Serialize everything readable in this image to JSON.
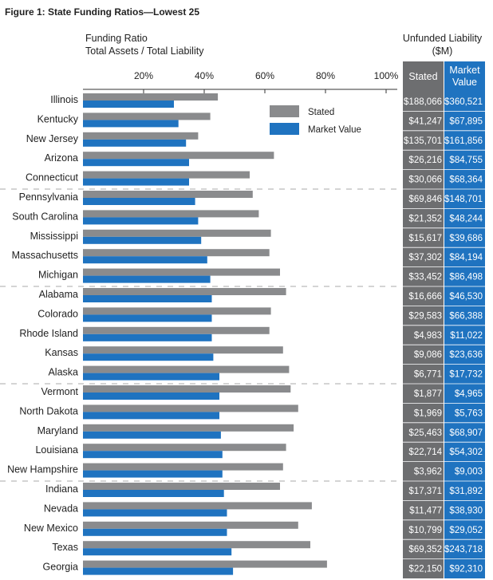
{
  "figure_title": "Figure 1: State Funding Ratios—Lowest 25",
  "axis_title_line1": "Funding Ratio",
  "axis_title_line2": "Total Assets / Total Liability",
  "unfunded_title_line1": "Unfunded Liability",
  "unfunded_title_line2": "($M)",
  "col_stated": "Stated",
  "col_market_line1": "Market",
  "col_market_line2": "Value",
  "colors": {
    "stated": "#8a8b8d",
    "market": "#1f73c0",
    "table_stated": "#6d6e70",
    "table_market": "#1f73c0"
  },
  "chart_data": {
    "type": "bar",
    "orientation": "horizontal",
    "categories": [
      "Illinois",
      "Kentucky",
      "New Jersey",
      "Arizona",
      "Connecticut",
      "Pennsylvania",
      "South Carolina",
      "Mississippi",
      "Massachusetts",
      "Michigan",
      "Alabama",
      "Colorado",
      "Rhode Island",
      "Kansas",
      "Alaska",
      "Vermont",
      "North Dakota",
      "Maryland",
      "Louisiana",
      "New Hampshire",
      "Indiana",
      "Nevada",
      "New Mexico",
      "Texas",
      "Georgia"
    ],
    "series": [
      {
        "name": "Stated",
        "values": [
          44.5,
          42,
          38,
          63,
          55,
          56,
          58,
          62,
          61.5,
          65,
          67,
          62,
          61.5,
          66,
          68,
          68.5,
          71,
          69.5,
          67,
          66,
          65,
          75.5,
          71,
          75,
          80.5
        ]
      },
      {
        "name": "Market Value",
        "values": [
          30,
          31.5,
          34,
          35,
          35,
          37,
          38,
          39,
          41,
          42,
          42.5,
          42.5,
          42.5,
          43,
          45,
          45,
          45,
          45.5,
          46,
          46,
          46.5,
          47.5,
          47.5,
          49,
          49.5
        ]
      }
    ],
    "xlim": [
      0,
      100
    ],
    "xticks": [
      "20%",
      "40%",
      "60%",
      "80%",
      "100%"
    ],
    "xtick_values": [
      20,
      40,
      60,
      80,
      100
    ],
    "legend_position": "top-right"
  },
  "table": {
    "stated": [
      "$188,066",
      "$41,247",
      "$135,701",
      "$26,216",
      "$30,066",
      "$69,846",
      "$21,352",
      "$15,617",
      "$37,302",
      "$33,452",
      "$16,666",
      "$29,583",
      "$4,983",
      "$9,086",
      "$6,771",
      "$1,877",
      "$1,969",
      "$25,463",
      "$22,714",
      "$3,962",
      "$17,371",
      "$11,477",
      "$10,799",
      "$69,352",
      "$22,150"
    ],
    "market": [
      "$360,521",
      "$67,895",
      "$161,856",
      "$84,755",
      "$68,364",
      "$148,701",
      "$48,244",
      "$39,686",
      "$84,194",
      "$86,498",
      "$46,530",
      "$66,388",
      "$11,022",
      "$23,636",
      "$17,732",
      "$4,965",
      "$5,763",
      "$68,907",
      "$54,302",
      "$9,003",
      "$31,892",
      "$38,930",
      "$29,052",
      "$243,718",
      "$92,310"
    ]
  }
}
